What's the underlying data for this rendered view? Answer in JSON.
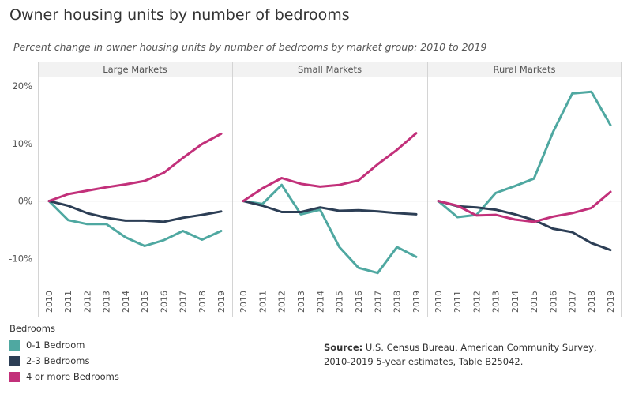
{
  "title": "Owner housing units by number of bedrooms",
  "subtitle": "Percent change in owner housing units by number of bedrooms by market group: 2010 to 2019",
  "legend": {
    "title": "Bedrooms",
    "items": [
      {
        "label": "0-1 Bedroom",
        "color": "#4fa8a1"
      },
      {
        "label": "2-3 Bedrooms",
        "color": "#2c3e55"
      },
      {
        "label": "4 or more Bedrooms",
        "color": "#c2307a"
      }
    ]
  },
  "source": {
    "label": "Source:",
    "text": "U.S. Census Bureau, American Community Survey, 2010-2019 5-year estimates, Table B25042."
  },
  "chart_data": {
    "type": "line",
    "y_ticks": [
      "20%",
      "10%",
      "0%",
      "-10%"
    ],
    "ylim": [
      -13.5,
      21.5
    ],
    "y_tick_values": [
      20,
      10,
      0,
      -10
    ],
    "x": [
      "2010",
      "2011",
      "2012",
      "2013",
      "2014",
      "2015",
      "2016",
      "2017",
      "2018",
      "2019"
    ],
    "grid": false,
    "panels": [
      {
        "name": "Large Markets",
        "series": [
          {
            "name": "0-1 Bedroom",
            "color": "#4fa8a1",
            "values": [
              0,
              -3.3,
              -4.0,
              -4.0,
              -6.3,
              -7.8,
              -6.8,
              -5.2,
              -6.7,
              -5.2
            ]
          },
          {
            "name": "2-3 Bedrooms",
            "color": "#2c3e55",
            "values": [
              0,
              -0.8,
              -2.1,
              -2.9,
              -3.4,
              -3.4,
              -3.6,
              -2.9,
              -2.4,
              -1.8
            ]
          },
          {
            "name": "4 or more Bedrooms",
            "color": "#c2307a",
            "values": [
              0,
              1.2,
              1.8,
              2.4,
              2.9,
              3.5,
              4.9,
              7.5,
              9.9,
              11.7
            ]
          }
        ]
      },
      {
        "name": "Small Markets",
        "series": [
          {
            "name": "0-1 Bedroom",
            "color": "#4fa8a1",
            "values": [
              0,
              -0.5,
              2.8,
              -2.3,
              -1.5,
              -8.0,
              -11.6,
              -12.5,
              -8.0,
              -9.7
            ]
          },
          {
            "name": "2-3 Bedrooms",
            "color": "#2c3e55",
            "values": [
              0,
              -0.8,
              -1.9,
              -1.9,
              -1.1,
              -1.7,
              -1.6,
              -1.8,
              -2.1,
              -2.3
            ]
          },
          {
            "name": "4 or more Bedrooms",
            "color": "#c2307a",
            "values": [
              0,
              2.2,
              4.0,
              3.0,
              2.5,
              2.8,
              3.6,
              6.4,
              8.9,
              11.8
            ]
          }
        ]
      },
      {
        "name": "Rural Markets",
        "series": [
          {
            "name": "0-1 Bedroom",
            "color": "#4fa8a1",
            "values": [
              0,
              -2.8,
              -2.4,
              1.4,
              2.6,
              3.9,
              12.0,
              18.7,
              19.0,
              13.2
            ]
          },
          {
            "name": "2-3 Bedrooms",
            "color": "#2c3e55",
            "values": [
              0,
              -0.9,
              -1.1,
              -1.5,
              -2.3,
              -3.3,
              -4.8,
              -5.4,
              -7.3,
              -8.5
            ]
          },
          {
            "name": "4 or more Bedrooms",
            "color": "#c2307a",
            "values": [
              0,
              -0.8,
              -2.5,
              -2.4,
              -3.2,
              -3.6,
              -2.7,
              -2.1,
              -1.2,
              1.6
            ]
          }
        ]
      }
    ]
  }
}
